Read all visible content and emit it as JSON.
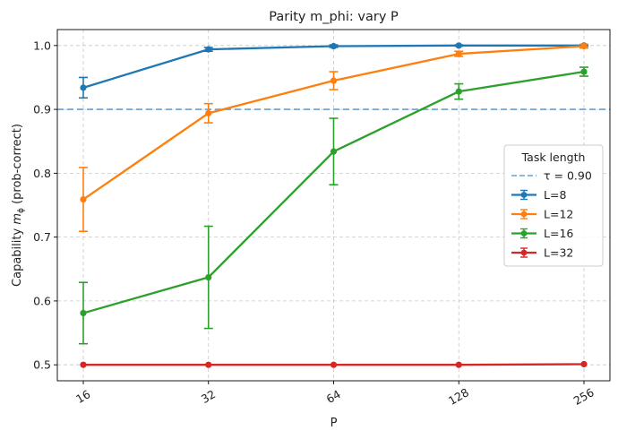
{
  "chart_data": {
    "type": "line",
    "title": "Parity m_phi: vary P",
    "xlabel": "P",
    "ylabel_prefix": "Capability ",
    "ylabel_symbol": "m",
    "ylabel_subscript": "ϕ",
    "ylabel_suffix": " (prob-correct)",
    "x": [
      16,
      32,
      64,
      128,
      256
    ],
    "x_tick_labels": [
      "16",
      "32",
      "64",
      "128",
      "256"
    ],
    "x_scale": "log2",
    "ylim": [
      0.475,
      1.025
    ],
    "y_ticks": [
      0.5,
      0.6,
      0.7,
      0.8,
      0.9,
      1.0
    ],
    "y_tick_labels": [
      "0.5",
      "0.6",
      "0.7",
      "0.8",
      "0.9",
      "1.0"
    ],
    "grid": true,
    "threshold": {
      "value": 0.9,
      "label": "τ = 0.90",
      "color": "#6a9fd0"
    },
    "legend": {
      "title": "Task length",
      "location": "center-right"
    },
    "series": [
      {
        "name": "L=8",
        "color": "#1f77b4",
        "values": [
          0.934,
          0.994,
          0.999,
          1.0,
          1.0
        ],
        "errors": [
          0.016,
          0.003,
          0.002,
          0.001,
          0.001
        ]
      },
      {
        "name": "L=12",
        "color": "#ff7f0e",
        "values": [
          0.759,
          0.894,
          0.945,
          0.987,
          0.999
        ],
        "errors": [
          0.05,
          0.015,
          0.014,
          0.004,
          0.003
        ]
      },
      {
        "name": "L=16",
        "color": "#2ca02c",
        "values": [
          0.581,
          0.637,
          0.834,
          0.928,
          0.959
        ],
        "errors": [
          0.048,
          0.08,
          0.052,
          0.012,
          0.007
        ]
      },
      {
        "name": "L=32",
        "color": "#d62728",
        "values": [
          0.5,
          0.5,
          0.5,
          0.5,
          0.501
        ],
        "errors": [
          0.0,
          0.0,
          0.0,
          0.0,
          0.0
        ]
      }
    ]
  }
}
